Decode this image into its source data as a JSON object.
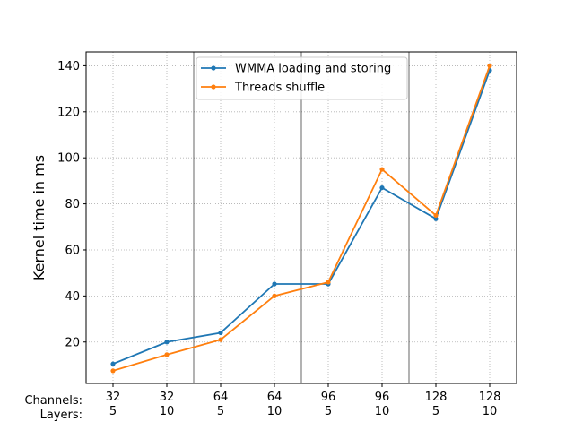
{
  "chart_data": {
    "type": "line",
    "ylabel": "Kernel time in ms",
    "ylim": [
      2,
      146
    ],
    "yticks": [
      20,
      40,
      60,
      80,
      100,
      120,
      140
    ],
    "x": [
      0,
      1,
      2,
      3,
      4,
      5,
      6,
      7
    ],
    "xtick_rows": [
      {
        "label": "Channels:",
        "values": [
          "32",
          "32",
          "64",
          "64",
          "96",
          "96",
          "128",
          "128"
        ]
      },
      {
        "label": "Layers:",
        "values": [
          "5",
          "10",
          "5",
          "10",
          "5",
          "10",
          "5",
          "10"
        ]
      }
    ],
    "group_separators_after_index": [
      1,
      3,
      5
    ],
    "grid": true,
    "legend_position": "upper center",
    "series": [
      {
        "name": "WMMA loading and storing",
        "color": "#1f77b4",
        "values": [
          10.5,
          20,
          24,
          45.2,
          45.2,
          87,
          73.5,
          138
        ]
      },
      {
        "name": "Threads shuffle",
        "color": "#ff7f0e",
        "values": [
          7.5,
          14.5,
          21,
          40,
          46,
          95,
          75,
          140
        ]
      }
    ]
  }
}
